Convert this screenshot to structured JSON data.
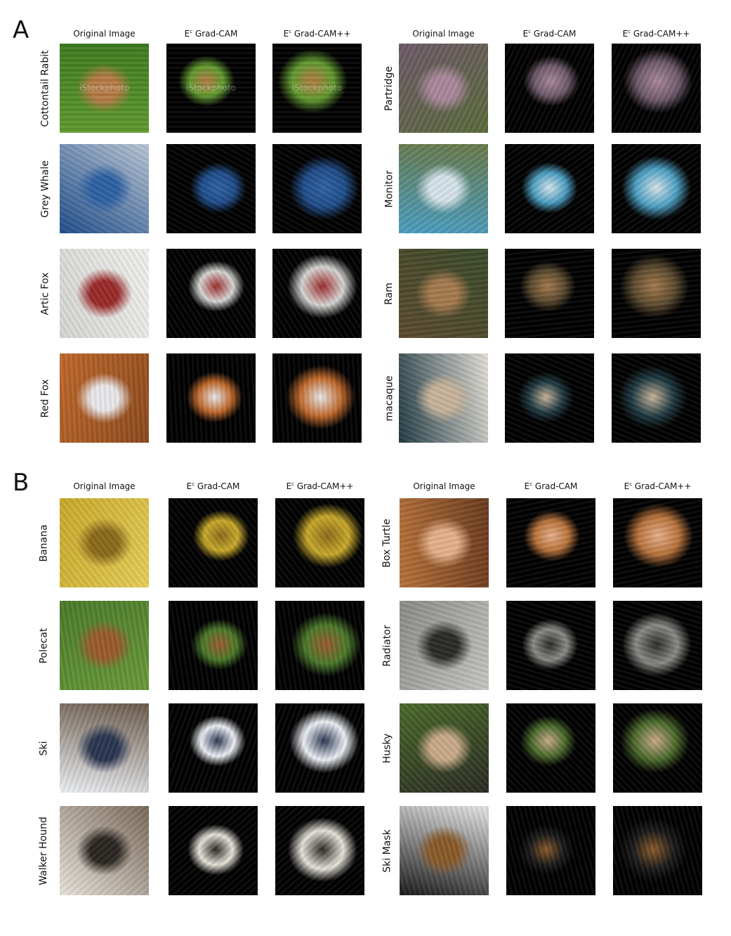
{
  "panels": [
    {
      "label": "A",
      "columns": [
        "Original Image",
        "E<sup>c</sup> Grad-CAM",
        "E<sup>c</sup> Grad-CAM++"
      ],
      "groups": [
        {
          "rows": [
            {
              "label": "Cottontail Rabit",
              "palette": [
                "#5f9a2e",
                "#b57a45",
                "#3e7a1f"
              ],
              "watermark": "iStockphoto"
            },
            {
              "label": "Grey Whale",
              "palette": [
                "#1f4d8a",
                "#2e62a3",
                "#b9c6d6"
              ]
            },
            {
              "label": "Artic Fox",
              "palette": [
                "#d6d6d4",
                "#9a2a2a",
                "#f1f1ef"
              ]
            },
            {
              "label": "Red Fox",
              "palette": [
                "#c0682a",
                "#e9e9ec",
                "#8c4a1e"
              ]
            }
          ]
        },
        {
          "rows": [
            {
              "label": "Partridge",
              "palette": [
                "#6e5a6a",
                "#a9879a",
                "#5a6a3a"
              ]
            },
            {
              "label": "Monitor",
              "palette": [
                "#4a9ec2",
                "#d6e4ea",
                "#6a7a4a"
              ]
            },
            {
              "label": "Ram",
              "palette": [
                "#5b4a2e",
                "#a57a4e",
                "#3a4a2a"
              ]
            },
            {
              "label": "macaque",
              "palette": [
                "#1f3a42",
                "#c9b49a",
                "#e6e0d8"
              ]
            }
          ]
        }
      ]
    },
    {
      "label": "B",
      "columns": [
        "Original Image",
        "E<sup>c</sup> Grad-CAM",
        "E<sup>c</sup> Grad-CAM++"
      ],
      "groups": [
        {
          "rows": [
            {
              "label": "Banana",
              "palette": [
                "#c9a92a",
                "#8a6a1a",
                "#e6cf5a"
              ]
            },
            {
              "label": "Polecat",
              "palette": [
                "#4a7a2a",
                "#9a5a2e",
                "#6a9a3a"
              ]
            },
            {
              "label": "Ski",
              "palette": [
                "#eef1f6",
                "#2a3550",
                "#6a5a4a"
              ]
            },
            {
              "label": "Walker Hound",
              "palette": [
                "#e8e4dc",
                "#2a2520",
                "#7a6a5a"
              ]
            }
          ]
        },
        {
          "rows": [
            {
              "label": "Box Turtle",
              "palette": [
                "#b7723a",
                "#e6b08a",
                "#6a3a1e"
              ]
            },
            {
              "label": "Radiator",
              "palette": [
                "#8a8a86",
                "#2a2a28",
                "#c6c6c2"
              ]
            },
            {
              "label": "Husky",
              "palette": [
                "#4a6a2a",
                "#c9a98a",
                "#2a2a22"
              ]
            },
            {
              "label": "Ski Mask",
              "palette": [
                "#1a1a1a",
                "#8a5a2a",
                "#e6e6e6"
              ]
            }
          ]
        }
      ]
    }
  ]
}
